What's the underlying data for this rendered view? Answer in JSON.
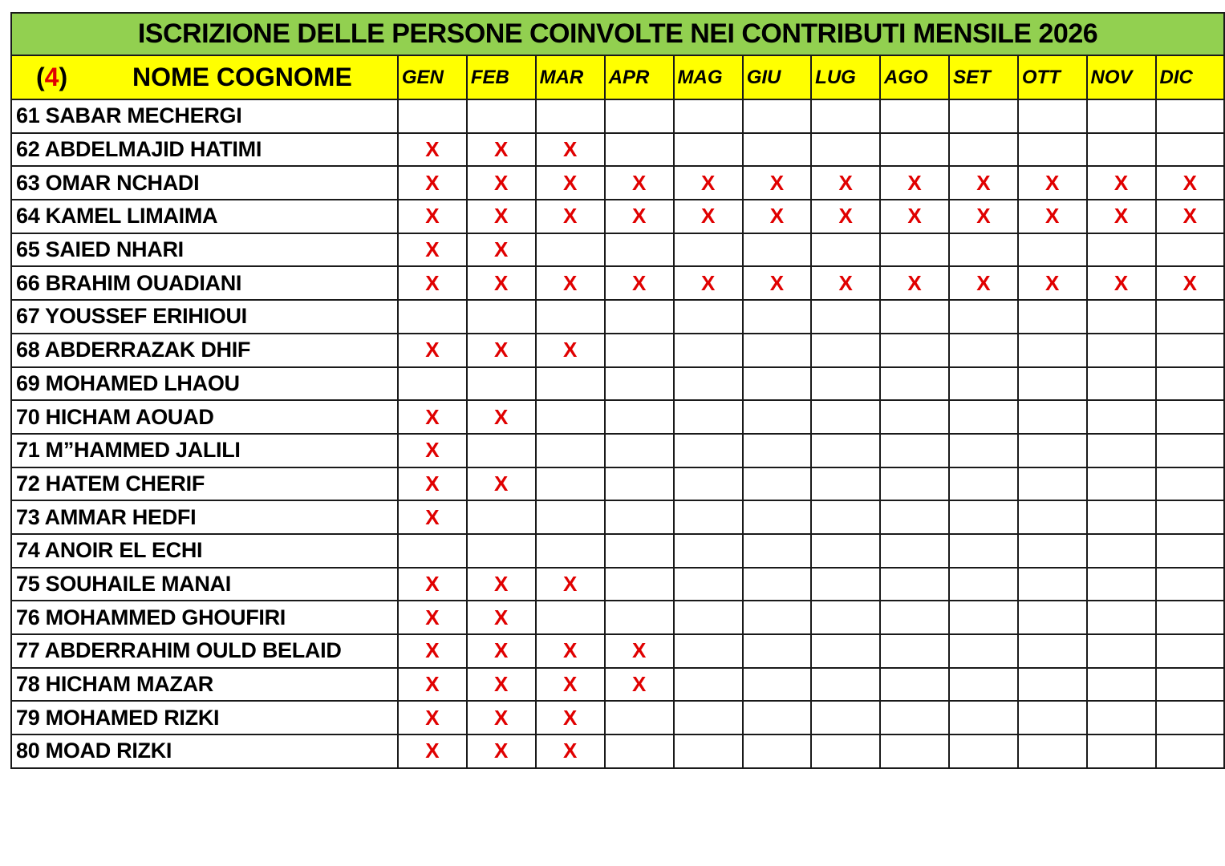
{
  "title": "ISCRIZIONE DELLE PERSONE COINVOLTE NEI CONTRIBUTI MENSILE 2026",
  "header": {
    "group_open": "(",
    "group_number": "4",
    "group_close": ")",
    "name_label": "NOME COGNOME",
    "months": [
      "GEN",
      "FEB",
      "MAR",
      "APR",
      "MAG",
      "GIU",
      "LUG",
      "AGO",
      "SET",
      "OTT",
      "NOV",
      "DIC"
    ]
  },
  "colors": {
    "title_bg": "#92d050",
    "header_bg": "#ffff00",
    "mark": "#e00000"
  },
  "rows": [
    {
      "name": "61 SABAR  MECHERGI",
      "marks": [
        "",
        "",
        "",
        "",
        "",
        "",
        "",
        "",
        "",
        "",
        "",
        ""
      ]
    },
    {
      "name": "62 ABDELMAJID HATIMI",
      "marks": [
        "X",
        "X",
        "X",
        "",
        "",
        "",
        "",
        "",
        "",
        "",
        "",
        ""
      ]
    },
    {
      "name": "63 OMAR NCHADI",
      "marks": [
        "X",
        "X",
        "X",
        "X",
        "X",
        "X",
        "X",
        "X",
        "X",
        "X",
        "X",
        "X"
      ]
    },
    {
      "name": "64 KAMEL LIMAIMA",
      "marks": [
        "X",
        "X",
        "X",
        "X",
        "X",
        "X",
        "X",
        "X",
        "X",
        "X",
        "X",
        "X"
      ]
    },
    {
      "name": "65 SAIED NHARI",
      "marks": [
        "X",
        "X",
        "",
        "",
        "",
        "",
        "",
        "",
        "",
        "",
        "",
        ""
      ]
    },
    {
      "name": "66 BRAHIM  OUADIANI",
      "marks": [
        "X",
        "X",
        "X",
        "X",
        "X",
        "X",
        "X",
        "X",
        "X",
        "X",
        "X",
        "X"
      ]
    },
    {
      "name": "67 YOUSSEF ERIHIOUI",
      "marks": [
        "",
        "",
        "",
        "",
        "",
        "",
        "",
        "",
        "",
        "",
        "",
        ""
      ]
    },
    {
      "name": "68 ABDERRAZAK DHIF",
      "marks": [
        "X",
        "X",
        "X",
        "",
        "",
        "",
        "",
        "",
        "",
        "",
        "",
        ""
      ]
    },
    {
      "name": "69 MOHAMED LHAOU",
      "marks": [
        "",
        "",
        "",
        "",
        "",
        "",
        "",
        "",
        "",
        "",
        "",
        ""
      ]
    },
    {
      "name": "70 HICHAM AOUAD",
      "marks": [
        "X",
        "X",
        "",
        "",
        "",
        "",
        "",
        "",
        "",
        "",
        "",
        ""
      ]
    },
    {
      "name": "71 M”HAMMED JALILI",
      "marks": [
        "X",
        "",
        "",
        "",
        "",
        "",
        "",
        "",
        "",
        "",
        "",
        ""
      ]
    },
    {
      "name": "72 HATEM CHERIF",
      "marks": [
        "X",
        "X",
        "",
        "",
        "",
        "",
        "",
        "",
        "",
        "",
        "",
        ""
      ]
    },
    {
      "name": "73 AMMAR HEDFI",
      "marks": [
        "X",
        "",
        "",
        "",
        "",
        "",
        "",
        "",
        "",
        "",
        "",
        ""
      ]
    },
    {
      "name": "74 ANOIR EL ECHI",
      "marks": [
        "",
        "",
        "",
        "",
        "",
        "",
        "",
        "",
        "",
        "",
        "",
        ""
      ]
    },
    {
      "name": "75 SOUHAILE  MANAI",
      "marks": [
        "X",
        "X",
        "X",
        "",
        "",
        "",
        "",
        "",
        "",
        "",
        "",
        ""
      ]
    },
    {
      "name": "76 MOHAMMED GHOUFIRI",
      "marks": [
        "X",
        "X",
        "",
        "",
        "",
        "",
        "",
        "",
        "",
        "",
        "",
        ""
      ]
    },
    {
      "name": "77 ABDERRAHIM OULD BELAID",
      "marks": [
        "X",
        "X",
        "X",
        "X",
        "",
        "",
        "",
        "",
        "",
        "",
        "",
        ""
      ]
    },
    {
      "name": "78 HICHAM MAZAR",
      "marks": [
        "X",
        "X",
        "X",
        "X",
        "",
        "",
        "",
        "",
        "",
        "",
        "",
        ""
      ]
    },
    {
      "name": "79 MOHAMED RIZKI",
      "marks": [
        "X",
        "X",
        "X",
        "",
        "",
        "",
        "",
        "",
        "",
        "",
        "",
        ""
      ]
    },
    {
      "name": "80 MOAD RIZKI",
      "marks": [
        "X",
        "X",
        "X",
        "",
        "",
        "",
        "",
        "",
        "",
        "",
        "",
        ""
      ]
    }
  ]
}
